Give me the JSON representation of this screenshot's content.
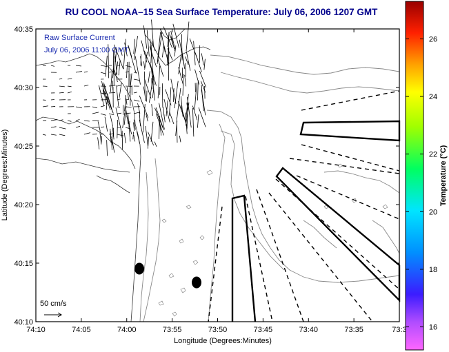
{
  "title": "RU COOL  NOAA–15  Sea Surface Temperature:  July 06, 2006 1207 GMT",
  "overlay": {
    "line1": "Raw Surface Current",
    "line2": "July 06, 2006 11:00 GMT"
  },
  "axes": {
    "xlabel": "Longitude (Degrees:Minutes)",
    "ylabel": "Latitude (Degrees:Minutes)",
    "xticks": [
      "74:10",
      "74:05",
      "74:00",
      "73:55",
      "73:50",
      "73:45",
      "73:40",
      "73:35",
      "73:3"
    ],
    "yticks": [
      "40:35",
      "40:30",
      "40:25",
      "40:20",
      "40:15",
      "40:10"
    ]
  },
  "scale_label": "50 cm/s",
  "colorbar": {
    "label": "Temperature (°C)",
    "ticks": [
      "26",
      "24",
      "22",
      "20",
      "18",
      "16"
    ],
    "range": [
      15.2,
      27.3
    ]
  }
}
